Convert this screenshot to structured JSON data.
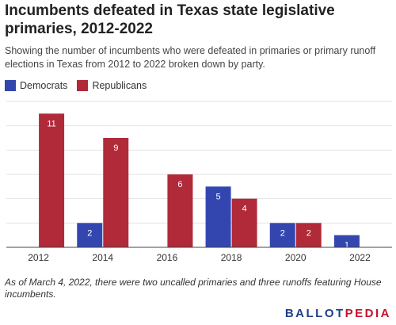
{
  "title": "Incumbents defeated in Texas state legislative primaries, 2012-2022",
  "subtitle": "Showing the number of incumbents who were defeated in primaries or primary runoff elections in Texas from 2012 to 2022 broken down by party.",
  "note": "As of March 4, 2022, there were two uncalled primaries and three runoffs featuring House incumbents.",
  "logo": {
    "part1": "BALLOT",
    "part2": "PEDIA",
    "color1": "#1d3f8a",
    "color2": "#c8102e"
  },
  "chart_data": {
    "type": "bar",
    "categories": [
      "2012",
      "2014",
      "2016",
      "2018",
      "2020",
      "2022"
    ],
    "series": [
      {
        "name": "Democrats",
        "color": "#3346b0",
        "values": [
          0,
          2,
          0,
          5,
          2,
          1
        ]
      },
      {
        "name": "Republicans",
        "color": "#b02a3a",
        "values": [
          11,
          9,
          6,
          4,
          2,
          0
        ]
      }
    ],
    "xlabel": "",
    "ylabel": "",
    "ylim": [
      0,
      12
    ],
    "grid": true,
    "legend": "top-left"
  }
}
